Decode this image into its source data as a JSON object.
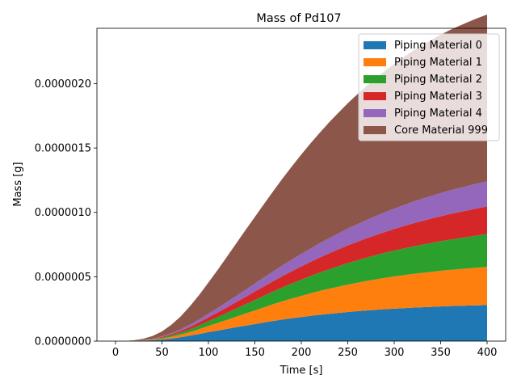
{
  "chart_data": {
    "type": "area",
    "stacked": true,
    "title": "Mass of Pd107",
    "xlabel": "Time [s]",
    "ylabel": "Mass [g]",
    "xlim": [
      -20,
      420
    ],
    "ylim": [
      0,
      2.43e-06
    ],
    "xticks": [
      0,
      50,
      100,
      150,
      200,
      250,
      300,
      350,
      400
    ],
    "xtick_labels": [
      "0",
      "50",
      "100",
      "150",
      "200",
      "250",
      "300",
      "350",
      "400"
    ],
    "yticks": [
      0,
      5e-07,
      1e-06,
      1.5e-06,
      2e-06
    ],
    "ytick_labels": [
      "0.0000000",
      "0.0000005",
      "0.0000010",
      "0.0000015",
      "0.0000020"
    ],
    "legend_position": "top-right",
    "x": [
      0,
      10,
      20,
      30,
      40,
      50,
      60,
      70,
      80,
      90,
      100,
      110,
      120,
      130,
      140,
      150,
      160,
      170,
      180,
      190,
      200,
      210,
      220,
      230,
      240,
      250,
      260,
      270,
      280,
      290,
      300,
      310,
      320,
      330,
      340,
      350,
      360,
      370,
      380,
      390,
      400
    ],
    "series": [
      {
        "name": "Piping Material 0",
        "color": "#1f77b4",
        "values": [
          0,
          0,
          1e-09,
          3e-09,
          6e-09,
          1.2e-08,
          2e-08,
          3e-08,
          4.2e-08,
          5.5e-08,
          7e-08,
          8.2e-08,
          9.5e-08,
          1.08e-07,
          1.2e-07,
          1.32e-07,
          1.45e-07,
          1.57e-07,
          1.68e-07,
          1.78e-07,
          1.87e-07,
          1.96e-07,
          2.05e-07,
          2.12e-07,
          2.19e-07,
          2.26e-07,
          2.32e-07,
          2.38e-07,
          2.43e-07,
          2.48e-07,
          2.52e-07,
          2.56e-07,
          2.6e-07,
          2.63e-07,
          2.66e-07,
          2.69e-07,
          2.72e-07,
          2.74e-07,
          2.76e-07,
          2.78e-07,
          2.8e-07
        ]
      },
      {
        "name": "Piping Material 1",
        "color": "#ff7f0e",
        "values": [
          0,
          0,
          1e-09,
          2e-09,
          4e-09,
          8e-09,
          1.3e-08,
          2e-08,
          2.8e-08,
          3.8e-08,
          4.8e-08,
          5.9e-08,
          7e-08,
          8.2e-08,
          9.4e-08,
          1.06e-07,
          1.18e-07,
          1.3e-07,
          1.42e-07,
          1.53e-07,
          1.64e-07,
          1.75e-07,
          1.85e-07,
          1.95e-07,
          2.04e-07,
          2.13e-07,
          2.21e-07,
          2.29e-07,
          2.36e-07,
          2.43e-07,
          2.5e-07,
          2.56e-07,
          2.62e-07,
          2.67e-07,
          2.72e-07,
          2.77e-07,
          2.81e-07,
          2.85e-07,
          2.89e-07,
          2.93e-07,
          2.96e-07
        ]
      },
      {
        "name": "Piping Material 2",
        "color": "#2ca02c",
        "values": [
          0,
          0,
          1e-09,
          2e-09,
          4e-09,
          7e-09,
          1.1e-08,
          1.6e-08,
          2.2e-08,
          2.9e-08,
          3.7e-08,
          4.5e-08,
          5.4e-08,
          6.3e-08,
          7.2e-08,
          8.1e-08,
          9e-08,
          9.9e-08,
          1.08e-07,
          1.17e-07,
          1.26e-07,
          1.35e-07,
          1.43e-07,
          1.51e-07,
          1.59e-07,
          1.67e-07,
          1.74e-07,
          1.81e-07,
          1.88e-07,
          1.95e-07,
          2.01e-07,
          2.07e-07,
          2.13e-07,
          2.19e-07,
          2.25e-07,
          2.3e-07,
          2.35e-07,
          2.4e-07,
          2.45e-07,
          2.5e-07,
          2.55e-07
        ]
      },
      {
        "name": "Piping Material 3",
        "color": "#d62728",
        "values": [
          0,
          0,
          1e-09,
          2e-09,
          3e-09,
          6e-09,
          9e-09,
          1.3e-08,
          1.8e-08,
          2.4e-08,
          3e-08,
          3.7e-08,
          4.4e-08,
          5.1e-08,
          5.8e-08,
          6.6e-08,
          7.3e-08,
          8.1e-08,
          8.8e-08,
          9.6e-08,
          1.03e-07,
          1.1e-07,
          1.17e-07,
          1.24e-07,
          1.31e-07,
          1.38e-07,
          1.44e-07,
          1.5e-07,
          1.56e-07,
          1.62e-07,
          1.68e-07,
          1.74e-07,
          1.79e-07,
          1.84e-07,
          1.89e-07,
          1.94e-07,
          1.99e-07,
          2.03e-07,
          2.07e-07,
          2.11e-07,
          2.15e-07
        ]
      },
      {
        "name": "Piping Material 4",
        "color": "#9467bd",
        "values": [
          0,
          0,
          1e-09,
          2e-09,
          3e-09,
          5e-09,
          8e-09,
          1.2e-08,
          1.7e-08,
          2.2e-08,
          2.8e-08,
          3.4e-08,
          4.1e-08,
          4.8e-08,
          5.5e-08,
          6.2e-08,
          6.9e-08,
          7.6e-08,
          8.3e-08,
          9e-08,
          9.7e-08,
          1.04e-07,
          1.11e-07,
          1.18e-07,
          1.24e-07,
          1.3e-07,
          1.36e-07,
          1.42e-07,
          1.48e-07,
          1.53e-07,
          1.58e-07,
          1.63e-07,
          1.68e-07,
          1.72e-07,
          1.76e-07,
          1.8e-07,
          1.84e-07,
          1.87e-07,
          1.9e-07,
          1.93e-07,
          1.96e-07
        ]
      },
      {
        "name": "Core Material 999",
        "color": "#8c564b",
        "values": [
          0,
          0,
          2e-09,
          8e-09,
          2e-08,
          3.7e-08,
          6.5e-08,
          1e-07,
          1.43e-07,
          1.9e-07,
          2.42e-07,
          2.96e-07,
          3.52e-07,
          4.08e-07,
          4.64e-07,
          5.18e-07,
          5.72e-07,
          6.24e-07,
          6.76e-07,
          7.25e-07,
          7.73e-07,
          8.17e-07,
          8.59e-07,
          9e-07,
          9.38e-07,
          9.74e-07,
          1.008e-06,
          1.04e-06,
          1.07e-06,
          1.098e-06,
          1.125e-06,
          1.15e-06,
          1.172e-06,
          1.193e-06,
          1.212e-06,
          1.23e-06,
          1.246e-06,
          1.26e-06,
          1.273e-06,
          1.285e-06,
          1.295e-06
        ]
      }
    ]
  }
}
